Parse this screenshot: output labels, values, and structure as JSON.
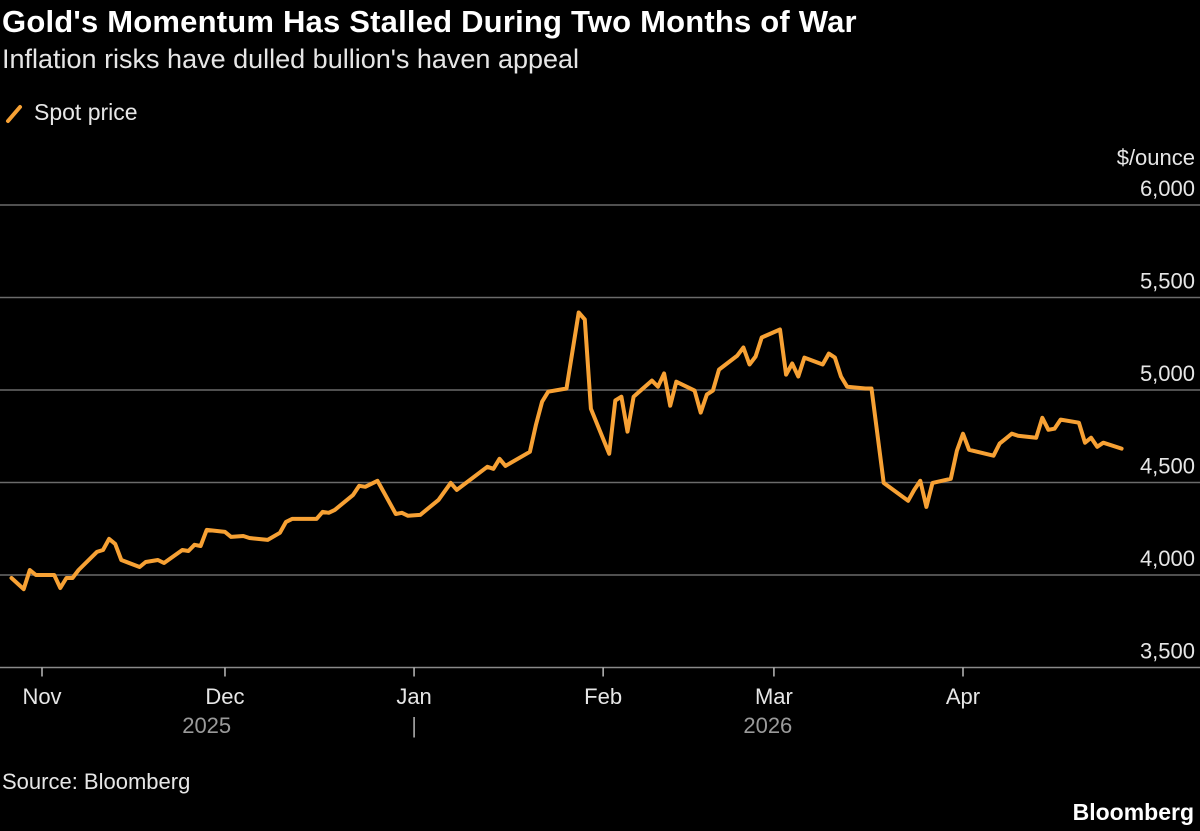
{
  "title": "Gold's Momentum Has Stalled During Two Months of War",
  "subtitle": "Inflation risks have dulled bullion's haven appeal",
  "source": "Source: Bloomberg",
  "brand": "Bloomberg",
  "colors": {
    "series": "#f7a134",
    "grid": "#6b6b6b",
    "background": "#000000"
  },
  "chart_data": {
    "type": "line",
    "title": "Gold's Momentum Has Stalled During Two Months of War",
    "subtitle": "Inflation risks have dulled bullion's haven appeal",
    "ylabel": "$/ounce",
    "ylim": [
      3500,
      6000
    ],
    "yticks": [
      3500,
      4000,
      4500,
      5000,
      5500,
      6000
    ],
    "ytick_labels": [
      "3,500",
      "4,000",
      "4,500",
      "5,000",
      "5,500",
      "6,000"
    ],
    "xticks": [
      {
        "date": "2025-11-01",
        "label": "Nov"
      },
      {
        "date": "2025-12-01",
        "label": "Dec"
      },
      {
        "date": "2026-01-01",
        "label": "Jan"
      },
      {
        "date": "2026-02-01",
        "label": "Feb"
      },
      {
        "date": "2026-03-01",
        "label": "Mar"
      },
      {
        "date": "2026-04-01",
        "label": "Apr"
      }
    ],
    "year_labels": [
      {
        "date": "2025-11-28",
        "label": "2025"
      },
      {
        "date": "2026-01-01",
        "label": "|"
      },
      {
        "date": "2026-02-28",
        "label": "2026"
      }
    ],
    "grid": true,
    "legend_position": "top-left",
    "series": [
      {
        "name": "Spot price",
        "color": "#f7a134",
        "points": [
          [
            "2025-10-27",
            3984
          ],
          [
            "2025-10-29",
            3924
          ],
          [
            "2025-10-30",
            4027
          ],
          [
            "2025-10-31",
            4000
          ],
          [
            "2025-11-03",
            4000
          ],
          [
            "2025-11-04",
            3930
          ],
          [
            "2025-11-05",
            3984
          ],
          [
            "2025-11-06",
            3984
          ],
          [
            "2025-11-07",
            4027
          ],
          [
            "2025-11-10",
            4125
          ],
          [
            "2025-11-11",
            4135
          ],
          [
            "2025-11-12",
            4195
          ],
          [
            "2025-11-13",
            4168
          ],
          [
            "2025-11-14",
            4081
          ],
          [
            "2025-11-17",
            4043
          ],
          [
            "2025-11-18",
            4070
          ],
          [
            "2025-11-20",
            4081
          ],
          [
            "2025-11-21",
            4065
          ],
          [
            "2025-11-24",
            4135
          ],
          [
            "2025-11-25",
            4130
          ],
          [
            "2025-11-26",
            4163
          ],
          [
            "2025-11-27",
            4157
          ],
          [
            "2025-11-28",
            4244
          ],
          [
            "2025-12-01",
            4233
          ],
          [
            "2025-12-02",
            4206
          ],
          [
            "2025-12-04",
            4211
          ],
          [
            "2025-12-05",
            4200
          ],
          [
            "2025-12-08",
            4190
          ],
          [
            "2025-12-10",
            4228
          ],
          [
            "2025-12-11",
            4287
          ],
          [
            "2025-12-12",
            4303
          ],
          [
            "2025-12-16",
            4303
          ],
          [
            "2025-12-17",
            4341
          ],
          [
            "2025-12-18",
            4336
          ],
          [
            "2025-12-19",
            4352
          ],
          [
            "2025-12-22",
            4433
          ],
          [
            "2025-12-23",
            4482
          ],
          [
            "2025-12-24",
            4477
          ],
          [
            "2025-12-26",
            4509
          ],
          [
            "2025-12-29",
            4330
          ],
          [
            "2025-12-30",
            4336
          ],
          [
            "2025-12-31",
            4320
          ],
          [
            "2026-01-02",
            4325
          ],
          [
            "2026-01-05",
            4406
          ],
          [
            "2026-01-07",
            4498
          ],
          [
            "2026-01-08",
            4460
          ],
          [
            "2026-01-13",
            4585
          ],
          [
            "2026-01-14",
            4574
          ],
          [
            "2026-01-15",
            4628
          ],
          [
            "2026-01-16",
            4590
          ],
          [
            "2026-01-20",
            4666
          ],
          [
            "2026-01-21",
            4813
          ],
          [
            "2026-01-22",
            4937
          ],
          [
            "2026-01-23",
            4991
          ],
          [
            "2026-01-26",
            5008
          ],
          [
            "2026-01-28",
            5419
          ],
          [
            "2026-01-29",
            5381
          ],
          [
            "2026-01-30",
            4899
          ],
          [
            "2026-02-02",
            4655
          ],
          [
            "2026-02-03",
            4943
          ],
          [
            "2026-02-04",
            4964
          ],
          [
            "2026-02-05",
            4775
          ],
          [
            "2026-02-06",
            4964
          ],
          [
            "2026-02-09",
            5051
          ],
          [
            "2026-02-10",
            5018
          ],
          [
            "2026-02-11",
            5089
          ],
          [
            "2026-02-12",
            4915
          ],
          [
            "2026-02-13",
            5045
          ],
          [
            "2026-02-16",
            4997
          ],
          [
            "2026-02-17",
            4878
          ],
          [
            "2026-02-18",
            4975
          ],
          [
            "2026-02-19",
            4997
          ],
          [
            "2026-02-20",
            5110
          ],
          [
            "2026-02-23",
            5186
          ],
          [
            "2026-02-24",
            5230
          ],
          [
            "2026-02-25",
            5138
          ],
          [
            "2026-02-26",
            5181
          ],
          [
            "2026-02-27",
            5284
          ],
          [
            "2026-03-02",
            5327
          ],
          [
            "2026-03-03",
            5083
          ],
          [
            "2026-03-04",
            5143
          ],
          [
            "2026-03-05",
            5073
          ],
          [
            "2026-03-06",
            5175
          ],
          [
            "2026-03-09",
            5138
          ],
          [
            "2026-03-10",
            5197
          ],
          [
            "2026-03-11",
            5175
          ],
          [
            "2026-03-12",
            5073
          ],
          [
            "2026-03-13",
            5018
          ],
          [
            "2026-03-16",
            5008
          ],
          [
            "2026-03-17",
            5008
          ],
          [
            "2026-03-19",
            4498
          ],
          [
            "2026-03-23",
            4401
          ],
          [
            "2026-03-24",
            4460
          ],
          [
            "2026-03-25",
            4509
          ],
          [
            "2026-03-26",
            4368
          ],
          [
            "2026-03-27",
            4498
          ],
          [
            "2026-03-30",
            4520
          ],
          [
            "2026-03-31",
            4672
          ],
          [
            "2026-04-01",
            4764
          ],
          [
            "2026-04-02",
            4677
          ],
          [
            "2026-04-06",
            4645
          ],
          [
            "2026-04-07",
            4710
          ],
          [
            "2026-04-08",
            4737
          ],
          [
            "2026-04-09",
            4764
          ],
          [
            "2026-04-10",
            4753
          ],
          [
            "2026-04-13",
            4742
          ],
          [
            "2026-04-14",
            4850
          ],
          [
            "2026-04-15",
            4785
          ],
          [
            "2026-04-16",
            4791
          ],
          [
            "2026-04-17",
            4840
          ],
          [
            "2026-04-20",
            4823
          ],
          [
            "2026-04-21",
            4715
          ],
          [
            "2026-04-22",
            4742
          ],
          [
            "2026-04-23",
            4693
          ],
          [
            "2026-04-24",
            4715
          ],
          [
            "2026-04-27",
            4683
          ]
        ]
      }
    ]
  }
}
